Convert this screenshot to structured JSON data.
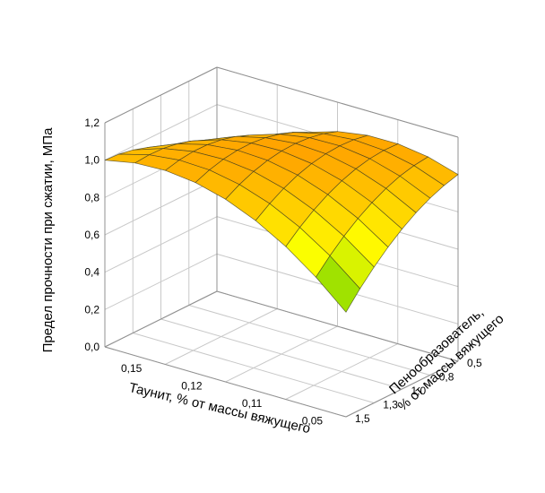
{
  "chart_data": {
    "type": "surface3d",
    "title": "",
    "zlabel": "Предел прочности при сжатии, МПа",
    "xlabel": "Таунит, % от массы вяжущего",
    "ylabel_line1": "Пенообразователь,",
    "ylabel_line2": "% от массы вяжущего",
    "z_ticks": [
      "0,0",
      "0,2",
      "0,4",
      "0,6",
      "0,8",
      "1,0",
      "1,2"
    ],
    "z_tick_values": [
      0.0,
      0.2,
      0.4,
      0.6,
      0.8,
      1.0,
      1.2
    ],
    "zlim": [
      0.0,
      1.2
    ],
    "x_ticks": [
      "0,15",
      "0,12",
      "0,11",
      "0,05"
    ],
    "x_tick_values": [
      0.15,
      0.12,
      0.11,
      0.05
    ],
    "y_ticks": [
      "0,5",
      "0,8",
      "1,0",
      "1,3",
      "1,5"
    ],
    "y_tick_values": [
      0.5,
      0.8,
      1.0,
      1.3,
      1.5
    ],
    "grid": true,
    "surface": {
      "x_values": [
        0.15,
        0.05
      ],
      "y_values": [
        0.5,
        1.5
      ],
      "corner_z": {
        "x0.15_y0.5": 0.69,
        "x0.15_y1.5": 1.0,
        "x0.05_y0.5": 1.0,
        "x0.05_y1.5": 0.56,
        "peak": 1.17
      },
      "grid_divisions": 8
    },
    "colormap": [
      "#22bb00",
      "#ffff00",
      "#ff8800"
    ]
  }
}
